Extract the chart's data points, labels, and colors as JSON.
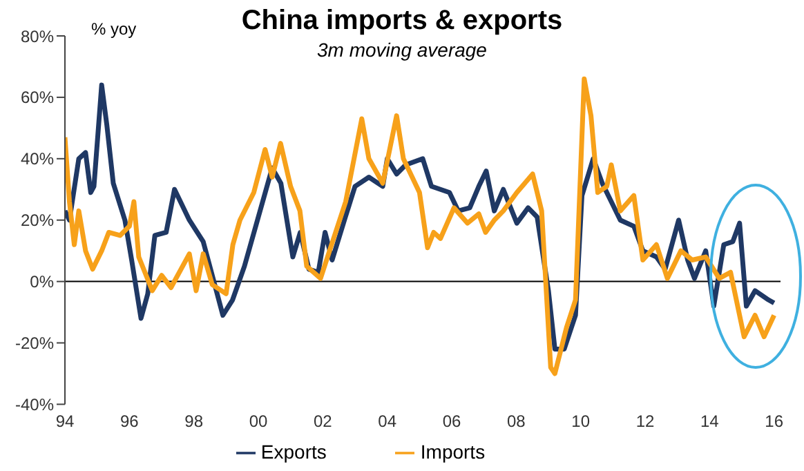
{
  "chart_data": {
    "type": "line",
    "title": "China imports & exports",
    "subtitle": "3m moving average",
    "ylabel": "% yoy",
    "xlim": [
      1994,
      2016.2
    ],
    "xticks": [
      {
        "value": 1994,
        "label": "94"
      },
      {
        "value": 1996,
        "label": "96"
      },
      {
        "value": 1998,
        "label": "98"
      },
      {
        "value": 2000,
        "label": "00"
      },
      {
        "value": 2002,
        "label": "02"
      },
      {
        "value": 2004,
        "label": "04"
      },
      {
        "value": 2006,
        "label": "06"
      },
      {
        "value": 2008,
        "label": "08"
      },
      {
        "value": 2010,
        "label": "10"
      },
      {
        "value": 2012,
        "label": "12"
      },
      {
        "value": 2014,
        "label": "14"
      },
      {
        "value": 2016,
        "label": "16"
      }
    ],
    "ylim": [
      -40,
      80
    ],
    "yticks": [
      {
        "value": -40,
        "label": "-40%"
      },
      {
        "value": -20,
        "label": "-20%"
      },
      {
        "value": 0,
        "label": "0%"
      },
      {
        "value": 20,
        "label": "20%"
      },
      {
        "value": 40,
        "label": "40%"
      },
      {
        "value": 60,
        "label": "60%"
      },
      {
        "value": 80,
        "label": "80%"
      }
    ],
    "grid": false,
    "legend": "bottom",
    "marker": "none",
    "line_style": "solid",
    "ref_lines": [
      {
        "axis": "y",
        "value": 0,
        "color": "#000000"
      }
    ],
    "series": [
      {
        "name": "Exports",
        "color": "#1f3864",
        "x": [
          1994.0,
          1994.14,
          1994.43,
          1994.64,
          1994.8,
          1994.9,
          1995.14,
          1995.3,
          1995.5,
          1995.86,
          1996.07,
          1996.36,
          1996.57,
          1996.79,
          1997.14,
          1997.4,
          1997.86,
          1998.29,
          1998.57,
          1998.9,
          1999.2,
          1999.57,
          2000.0,
          2000.43,
          2000.7,
          2001.07,
          2001.3,
          2001.57,
          2001.86,
          2002.07,
          2002.29,
          2002.7,
          2003.0,
          2003.43,
          2003.86,
          2004.0,
          2004.29,
          2004.57,
          2005.1,
          2005.37,
          2005.93,
          2006.2,
          2006.56,
          2006.84,
          2007.07,
          2007.32,
          2007.6,
          2008.02,
          2008.37,
          2008.65,
          2009.0,
          2009.2,
          2009.49,
          2009.84,
          2010.04,
          2010.39,
          2010.67,
          2010.95,
          2011.23,
          2011.65,
          2011.93,
          2012.35,
          2012.62,
          2013.04,
          2013.32,
          2013.53,
          2013.88,
          2014.13,
          2014.44,
          2014.72,
          2014.93,
          2015.14,
          2015.41,
          2015.83,
          2016.0
        ],
        "values": [
          23,
          20,
          40,
          42,
          29,
          31,
          64,
          51,
          32,
          20,
          7,
          -12,
          -4,
          15,
          16,
          30,
          20,
          13,
          2,
          -11,
          -6,
          5,
          21,
          37,
          32,
          8,
          16,
          4,
          3,
          16,
          7,
          21,
          31,
          34,
          31,
          40,
          35,
          38,
          40,
          31,
          29,
          23,
          24,
          31,
          36,
          23,
          30,
          19,
          24,
          21,
          -3,
          -22,
          -22,
          -11,
          28,
          40,
          32,
          26,
          20,
          18,
          10,
          8,
          4,
          20,
          7,
          1,
          10,
          -8,
          12,
          13,
          19,
          -8,
          -3,
          -6,
          -7
        ]
      },
      {
        "name": "Imports",
        "color": "#f7a11a",
        "x": [
          1994.0,
          1994.14,
          1994.29,
          1994.43,
          1994.64,
          1994.86,
          1995.14,
          1995.36,
          1995.71,
          1996.0,
          1996.14,
          1996.29,
          1996.71,
          1997.0,
          1997.29,
          1997.86,
          1998.07,
          1998.29,
          1998.57,
          1999.0,
          1999.21,
          1999.43,
          1999.86,
          2000.21,
          2000.43,
          2000.69,
          2001.0,
          2001.29,
          2001.5,
          2001.93,
          2002.21,
          2002.71,
          2003.21,
          2003.43,
          2003.86,
          2004.29,
          2004.5,
          2005.0,
          2005.25,
          2005.44,
          2005.65,
          2006.07,
          2006.49,
          2006.84,
          2007.05,
          2007.32,
          2007.6,
          2008.02,
          2008.51,
          2008.79,
          2009.07,
          2009.2,
          2009.56,
          2009.84,
          2010.11,
          2010.32,
          2010.53,
          2010.81,
          2010.95,
          2011.23,
          2011.65,
          2011.93,
          2012.35,
          2012.69,
          2013.11,
          2013.46,
          2013.88,
          2014.3,
          2014.65,
          2015.07,
          2015.41,
          2015.69,
          2016.0
        ],
        "values": [
          47,
          26,
          12,
          23,
          10,
          4,
          10,
          16,
          15,
          18,
          26,
          8,
          -3,
          2,
          -2,
          9,
          -3,
          9,
          -1,
          -4,
          12,
          20,
          29,
          43,
          34,
          45,
          31,
          23,
          5,
          1,
          10,
          26,
          53,
          40,
          32,
          54,
          40,
          29,
          11,
          16,
          14,
          24,
          19,
          22,
          16,
          20,
          23,
          29,
          35,
          23,
          -28,
          -30,
          -15,
          -6,
          66,
          54,
          29,
          31,
          38,
          23,
          28,
          7,
          12,
          1,
          10,
          7,
          8,
          1,
          3,
          -18,
          -11,
          -18,
          -11
        ]
      }
    ]
  }
}
